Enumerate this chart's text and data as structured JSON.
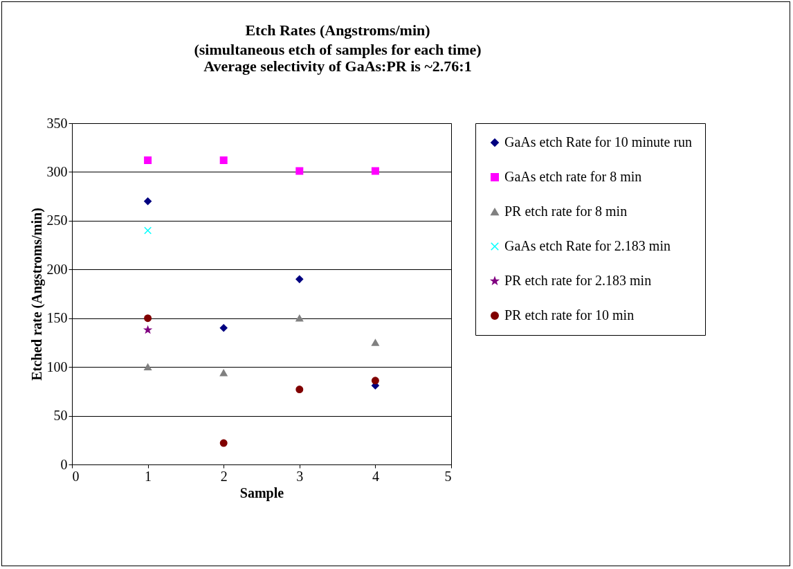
{
  "chart_data": {
    "type": "scatter",
    "title": "Etch Rates (Angstroms/min)",
    "subtitle": [
      "(simultaneous etch of samples for each time)",
      "Average selectivity of GaAs:PR is ~2.76:1"
    ],
    "xlabel": "Sample",
    "ylabel": "Etched rate (Angstroms/min)",
    "x": [
      1,
      2,
      3,
      4
    ],
    "xlim": [
      0,
      5
    ],
    "xticks": [
      0,
      1,
      2,
      3,
      4,
      5
    ],
    "ylim": [
      0,
      350
    ],
    "yticks": [
      0,
      50,
      100,
      150,
      200,
      250,
      300,
      350
    ],
    "grid": "y",
    "legend": "right",
    "series": [
      {
        "name": "GaAs etch Rate for 10 minute run",
        "color": "#000080",
        "marker": "diamond",
        "values": [
          270,
          140,
          190,
          81
        ]
      },
      {
        "name": "GaAs etch rate for 8 min",
        "color": "#ff00ff",
        "marker": "square",
        "values": [
          312,
          312,
          301,
          301
        ]
      },
      {
        "name": "PR etch rate for 8 min",
        "color": "#808080",
        "marker": "triangle",
        "values": [
          100,
          94,
          150,
          125
        ]
      },
      {
        "name": "GaAs etch Rate for 2.183 min",
        "color": "#00ffff",
        "marker": "cross",
        "values": [
          240,
          null,
          null,
          null
        ]
      },
      {
        "name": "PR etch rate for 2.183 min",
        "color": "#800080",
        "marker": "star",
        "values": [
          138,
          null,
          null,
          null
        ]
      },
      {
        "name": "PR etch rate for 10 min",
        "color": "#800000",
        "marker": "circle",
        "values": [
          150,
          22,
          77,
          86
        ]
      }
    ]
  }
}
